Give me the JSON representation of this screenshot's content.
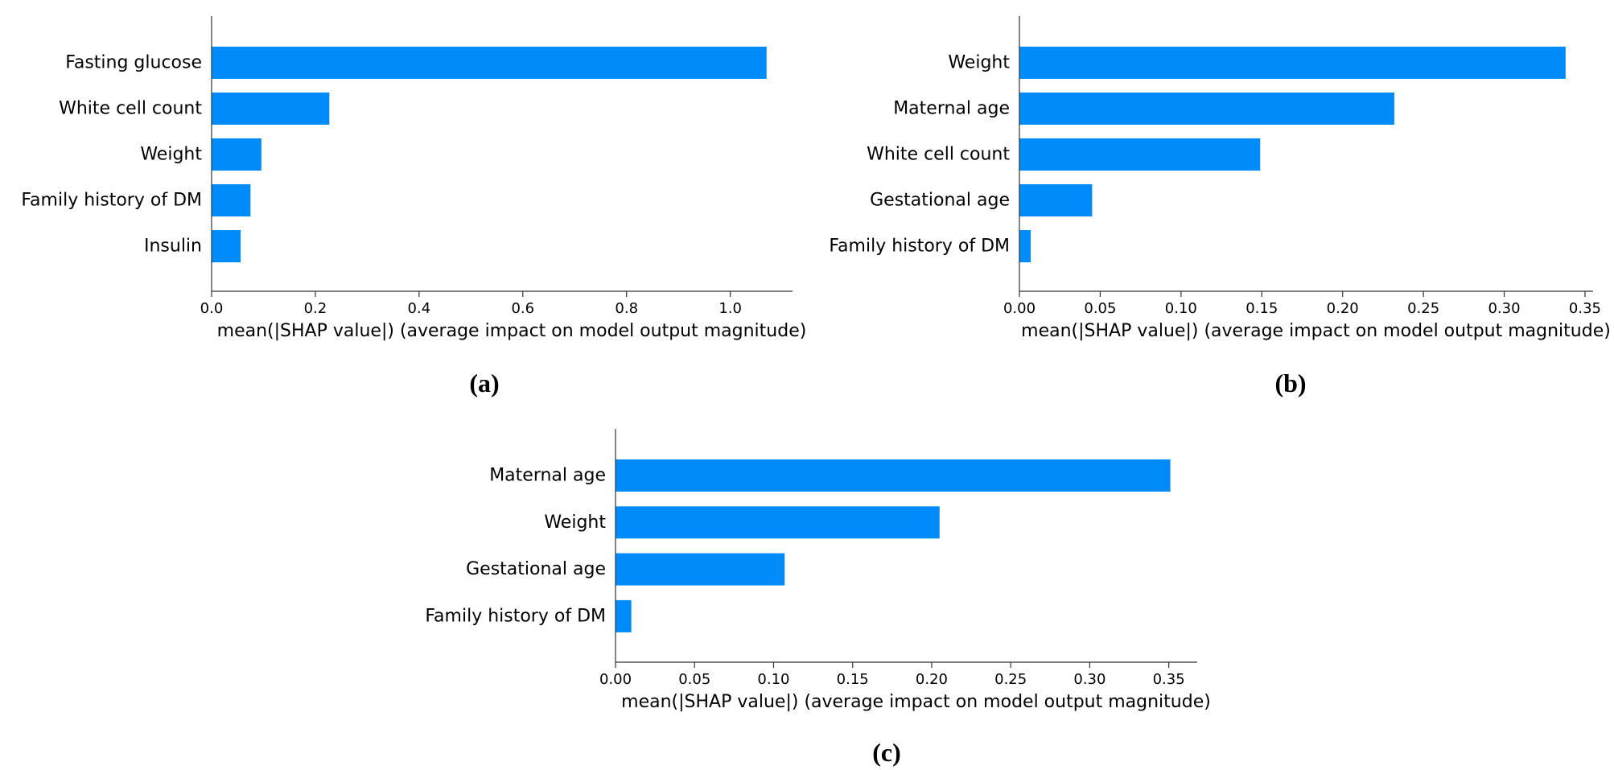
{
  "colors": {
    "bar": "#008bfb",
    "axis": "#333333"
  },
  "chart_data": [
    {
      "type": "bar",
      "orientation": "horizontal",
      "panel_label": "(a)",
      "categories": [
        "Fasting glucose",
        "White cell count",
        "Weight",
        "Family history of DM",
        "Insulin"
      ],
      "values": [
        1.07,
        0.227,
        0.096,
        0.075,
        0.056
      ],
      "xlabel": "mean(|SHAP value|) (average impact on model output magnitude)",
      "xlim": [
        0,
        1.12
      ],
      "xticks": [
        0.0,
        0.2,
        0.4,
        0.6,
        0.8,
        1.0
      ],
      "xtick_labels": [
        "0.0",
        "0.2",
        "0.4",
        "0.6",
        "0.8",
        "1.0"
      ]
    },
    {
      "type": "bar",
      "orientation": "horizontal",
      "panel_label": "(b)",
      "categories": [
        "Weight",
        "Maternal age",
        "White cell count",
        "Gestational age",
        "Family history of DM"
      ],
      "values": [
        0.338,
        0.232,
        0.149,
        0.045,
        0.007
      ],
      "xlabel": "mean(|SHAP value|) (average impact on model output magnitude)",
      "xlim": [
        0,
        0.355
      ],
      "xticks": [
        0.0,
        0.05,
        0.1,
        0.15,
        0.2,
        0.25,
        0.3,
        0.35
      ],
      "xtick_labels": [
        "0.00",
        "0.05",
        "0.10",
        "0.15",
        "0.20",
        "0.25",
        "0.30",
        "0.35"
      ]
    },
    {
      "type": "bar",
      "orientation": "horizontal",
      "panel_label": "(c)",
      "categories": [
        "Maternal age",
        "Weight",
        "Gestational age",
        "Family history of DM"
      ],
      "values": [
        0.351,
        0.205,
        0.107,
        0.01
      ],
      "xlabel": "mean(|SHAP value|) (average impact on model output magnitude)",
      "xlim": [
        0,
        0.368
      ],
      "xticks": [
        0.0,
        0.05,
        0.1,
        0.15,
        0.2,
        0.25,
        0.3,
        0.35
      ],
      "xtick_labels": [
        "0.00",
        "0.05",
        "0.10",
        "0.15",
        "0.20",
        "0.25",
        "0.30",
        "0.35"
      ]
    }
  ]
}
